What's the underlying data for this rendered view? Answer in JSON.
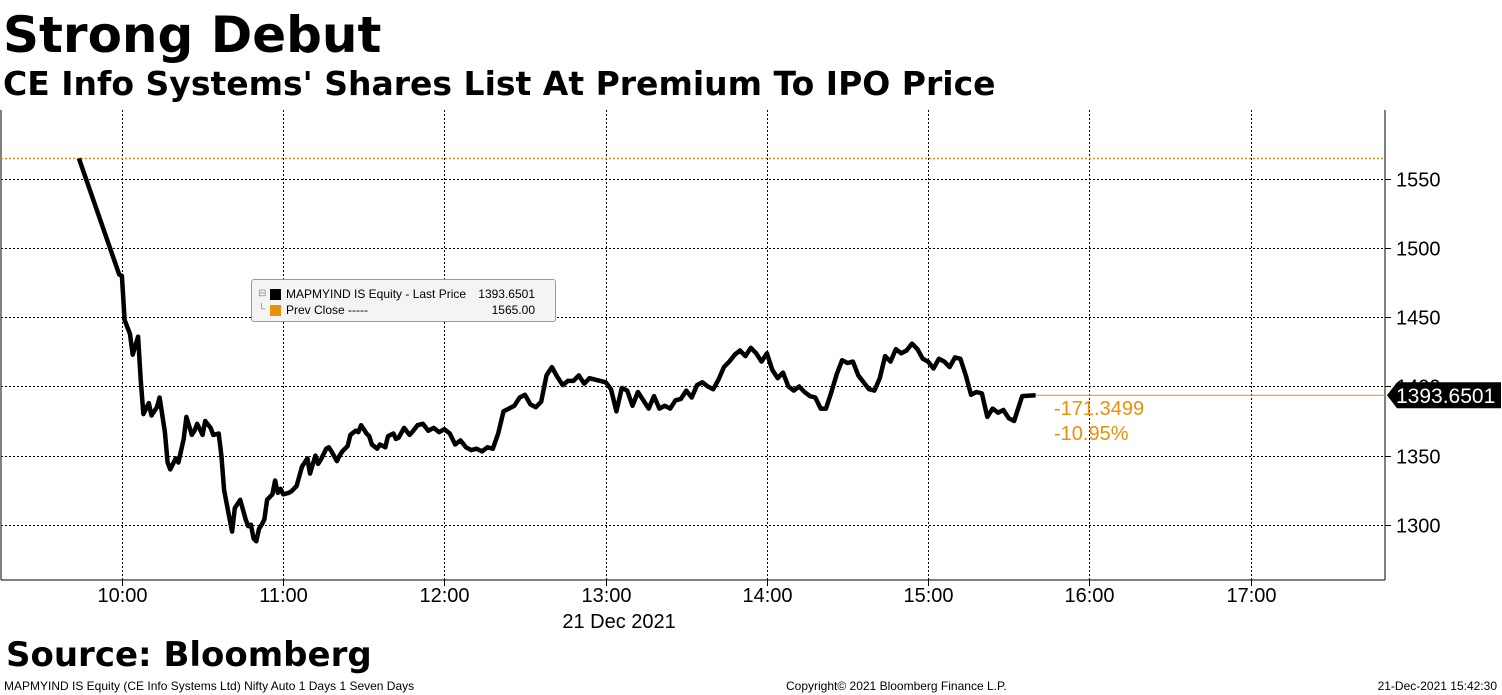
{
  "chart_data": {
    "type": "line",
    "title": "Strong Debut",
    "subtitle": "CE Info Systems' Shares List At Premium To IPO Price",
    "date_label": "21 Dec 2021",
    "x_ticks": [
      "10:00",
      "11:00",
      "12:00",
      "13:00",
      "14:00",
      "15:00",
      "16:00",
      "17:00"
    ],
    "x_range": [
      "09:15",
      "17:50"
    ],
    "y_ticks": [
      1300,
      1350,
      1400,
      1450,
      1500,
      1550
    ],
    "y_range": [
      1260,
      1600
    ],
    "y_axis_side": "right",
    "grid": true,
    "series": [
      {
        "name": "MAPMYIND IS Equity - Last Price",
        "color": "#000000",
        "last_value_label": "1393.6501",
        "points": [
          [
            "09:44",
            1565
          ],
          [
            "09:59",
            1481
          ],
          [
            "10:00",
            1480
          ],
          [
            "10:01",
            1448
          ],
          [
            "10:03",
            1438
          ],
          [
            "10:04",
            1423
          ],
          [
            "10:06",
            1436
          ],
          [
            "10:07",
            1405
          ],
          [
            "10:08",
            1380
          ],
          [
            "10:10",
            1388
          ],
          [
            "10:11",
            1379
          ],
          [
            "10:13",
            1385
          ],
          [
            "10:14",
            1392
          ],
          [
            "10:16",
            1367
          ],
          [
            "10:17",
            1345
          ],
          [
            "10:18",
            1340
          ],
          [
            "10:20",
            1348
          ],
          [
            "10:21",
            1345
          ],
          [
            "10:23",
            1362
          ],
          [
            "10:24",
            1378
          ],
          [
            "10:26",
            1365
          ],
          [
            "10:27",
            1368
          ],
          [
            "10:28",
            1373
          ],
          [
            "10:30",
            1365
          ],
          [
            "10:31",
            1375
          ],
          [
            "10:33",
            1370
          ],
          [
            "10:34",
            1365
          ],
          [
            "10:36",
            1366
          ],
          [
            "10:37",
            1350
          ],
          [
            "10:38",
            1325
          ],
          [
            "10:40",
            1305
          ],
          [
            "10:41",
            1295
          ],
          [
            "10:42",
            1312
          ],
          [
            "10:44",
            1318
          ],
          [
            "10:46",
            1304
          ],
          [
            "10:47",
            1299
          ],
          [
            "10:48",
            1300
          ],
          [
            "10:49",
            1290
          ],
          [
            "10:50",
            1288
          ],
          [
            "10:51",
            1297
          ],
          [
            "10:52",
            1300
          ],
          [
            "10:53",
            1304
          ],
          [
            "10:54",
            1318
          ],
          [
            "10:56",
            1322
          ],
          [
            "10:57",
            1332
          ],
          [
            "10:58",
            1323
          ],
          [
            "10:59",
            1326
          ],
          [
            "11:00",
            1322
          ],
          [
            "11:02",
            1323
          ],
          [
            "11:03",
            1324
          ],
          [
            "11:05",
            1328
          ],
          [
            "11:06",
            1335
          ],
          [
            "11:07",
            1342
          ],
          [
            "11:09",
            1348
          ],
          [
            "11:10",
            1337
          ],
          [
            "11:12",
            1350
          ],
          [
            "11:13",
            1344
          ],
          [
            "11:14",
            1347
          ],
          [
            "11:16",
            1355
          ],
          [
            "11:17",
            1356
          ],
          [
            "11:18",
            1353
          ],
          [
            "11:20",
            1346
          ],
          [
            "11:21",
            1350
          ],
          [
            "11:22",
            1353
          ],
          [
            "11:24",
            1357
          ],
          [
            "11:25",
            1365
          ],
          [
            "11:27",
            1368
          ],
          [
            "11:28",
            1367
          ],
          [
            "11:29",
            1372
          ],
          [
            "11:31",
            1366
          ],
          [
            "11:32",
            1364
          ],
          [
            "11:33",
            1358
          ],
          [
            "11:35",
            1355
          ],
          [
            "11:36",
            1358
          ],
          [
            "11:38",
            1356
          ],
          [
            "11:39",
            1364
          ],
          [
            "11:41",
            1366
          ],
          [
            "11:42",
            1362
          ],
          [
            "11:43",
            1363
          ],
          [
            "11:45",
            1370
          ],
          [
            "11:47",
            1365
          ],
          [
            "11:48",
            1367
          ],
          [
            "11:50",
            1372
          ],
          [
            "11:52",
            1373
          ],
          [
            "11:54",
            1368
          ],
          [
            "11:56",
            1370
          ],
          [
            "11:58",
            1367
          ],
          [
            "12:00",
            1369
          ],
          [
            "12:02",
            1366
          ],
          [
            "12:04",
            1358
          ],
          [
            "12:06",
            1361
          ],
          [
            "12:08",
            1356
          ],
          [
            "12:10",
            1354
          ],
          [
            "12:12",
            1355
          ],
          [
            "12:14",
            1353
          ],
          [
            "12:16",
            1356
          ],
          [
            "12:18",
            1355
          ],
          [
            "12:20",
            1366
          ],
          [
            "12:22",
            1382
          ],
          [
            "12:24",
            1384
          ],
          [
            "12:26",
            1386
          ],
          [
            "12:28",
            1392
          ],
          [
            "12:30",
            1394
          ],
          [
            "12:32",
            1387
          ],
          [
            "12:34",
            1385
          ],
          [
            "12:36",
            1389
          ],
          [
            "12:38",
            1408
          ],
          [
            "12:40",
            1414
          ],
          [
            "12:42",
            1407
          ],
          [
            "12:44",
            1401
          ],
          [
            "12:46",
            1404
          ],
          [
            "12:48",
            1404
          ],
          [
            "12:50",
            1408
          ],
          [
            "12:52",
            1402
          ],
          [
            "12:54",
            1406
          ],
          [
            "12:56",
            1405
          ],
          [
            "12:58",
            1404
          ],
          [
            "13:00",
            1403
          ],
          [
            "13:02",
            1398
          ],
          [
            "13:04",
            1382
          ],
          [
            "13:06",
            1399
          ],
          [
            "13:08",
            1397
          ],
          [
            "13:10",
            1386
          ],
          [
            "13:12",
            1396
          ],
          [
            "13:14",
            1390
          ],
          [
            "13:16",
            1384
          ],
          [
            "13:18",
            1393
          ],
          [
            "13:20",
            1384
          ],
          [
            "13:22",
            1386
          ],
          [
            "13:24",
            1384
          ],
          [
            "13:26",
            1390
          ],
          [
            "13:28",
            1391
          ],
          [
            "13:30",
            1397
          ],
          [
            "13:32",
            1392
          ],
          [
            "13:34",
            1401
          ],
          [
            "13:36",
            1403
          ],
          [
            "13:38",
            1400
          ],
          [
            "13:40",
            1398
          ],
          [
            "13:42",
            1405
          ],
          [
            "13:44",
            1414
          ],
          [
            "13:46",
            1418
          ],
          [
            "13:48",
            1423
          ],
          [
            "13:50",
            1426
          ],
          [
            "13:52",
            1422
          ],
          [
            "13:54",
            1428
          ],
          [
            "13:56",
            1424
          ],
          [
            "13:58",
            1418
          ],
          [
            "14:00",
            1424
          ],
          [
            "14:02",
            1412
          ],
          [
            "14:04",
            1406
          ],
          [
            "14:06",
            1410
          ],
          [
            "14:08",
            1400
          ],
          [
            "14:10",
            1397
          ],
          [
            "14:12",
            1400
          ],
          [
            "14:14",
            1396
          ],
          [
            "14:16",
            1393
          ],
          [
            "14:18",
            1392
          ],
          [
            "14:20",
            1384
          ],
          [
            "14:22",
            1384
          ],
          [
            "14:24",
            1396
          ],
          [
            "14:26",
            1409
          ],
          [
            "14:28",
            1419
          ],
          [
            "14:30",
            1417
          ],
          [
            "14:32",
            1418
          ],
          [
            "14:34",
            1408
          ],
          [
            "14:36",
            1403
          ],
          [
            "14:38",
            1398
          ],
          [
            "14:40",
            1397
          ],
          [
            "14:42",
            1406
          ],
          [
            "14:44",
            1422
          ],
          [
            "14:46",
            1418
          ],
          [
            "14:48",
            1427
          ],
          [
            "14:50",
            1424
          ],
          [
            "14:52",
            1426
          ],
          [
            "14:54",
            1431
          ],
          [
            "14:56",
            1427
          ],
          [
            "14:58",
            1420
          ],
          [
            "15:00",
            1418
          ],
          [
            "15:02",
            1413
          ],
          [
            "15:04",
            1420
          ],
          [
            "15:06",
            1418
          ],
          [
            "15:08",
            1414
          ],
          [
            "15:10",
            1421
          ],
          [
            "15:12",
            1420
          ],
          [
            "15:14",
            1408
          ],
          [
            "15:16",
            1394
          ],
          [
            "15:18",
            1396
          ],
          [
            "15:20",
            1395
          ],
          [
            "15:22",
            1378
          ],
          [
            "15:24",
            1384
          ],
          [
            "15:26",
            1381
          ],
          [
            "15:28",
            1383
          ],
          [
            "15:30",
            1377
          ],
          [
            "15:32",
            1375
          ],
          [
            "15:35",
            1393
          ],
          [
            "15:40",
            1393.6501
          ]
        ]
      },
      {
        "name": "Prev Close",
        "color": "#e8900c",
        "value": 1565.0,
        "value_label": "1565.00",
        "dash_label": "-----"
      }
    ],
    "change_labels": [
      "-171.3499",
      "-10.95%"
    ],
    "legend": {
      "placement": "top-left",
      "rows": [
        {
          "label": "MAPMYIND IS Equity - Last Price",
          "value": "1393.6501",
          "color": "#000000"
        },
        {
          "label": "Prev Close -----",
          "value": "1565.00",
          "color": "#e8900c"
        }
      ]
    },
    "source": "Source: Bloomberg"
  },
  "footer": {
    "left": "MAPMYIND IS Equity (CE Info Systems Ltd) Nifty Auto 1 Days 1 Seven Days",
    "center": "Copyright© 2021 Bloomberg Finance L.P.",
    "right": "21-Dec-2021 15:42:30"
  }
}
